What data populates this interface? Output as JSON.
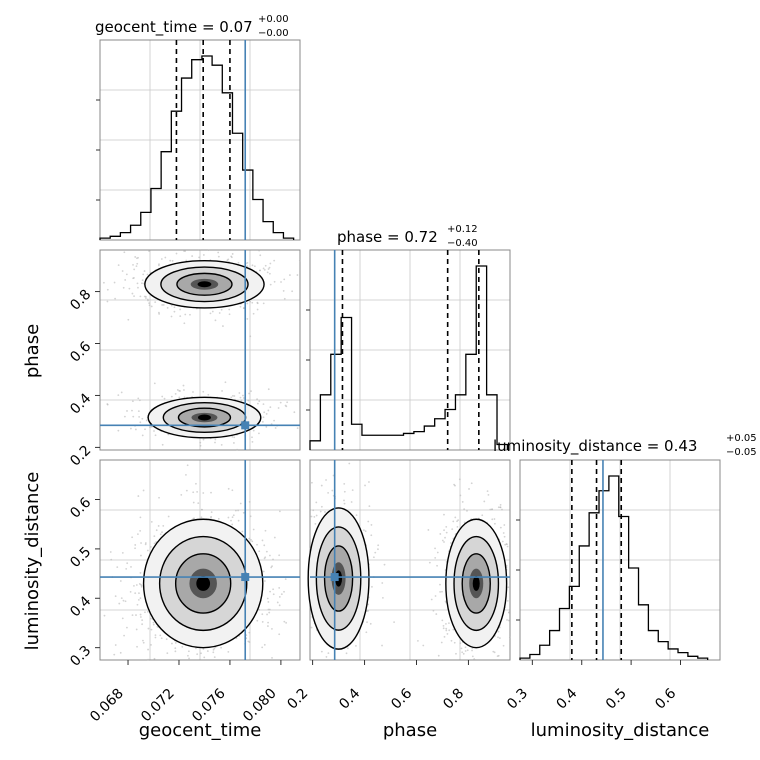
{
  "colors": {
    "truth": "#4682b4",
    "hist": "#000000",
    "grid": "#c8c8c8",
    "contour": "#000000"
  },
  "titles": {
    "geocent_time": {
      "prefix": "geocent_time = 0.07",
      "plus": "+0.00",
      "minus": "−0.00"
    },
    "phase": {
      "prefix": "phase = 0.72",
      "plus": "+0.12",
      "minus": "−0.40"
    },
    "luminosity_distance": {
      "prefix": "luminosity_distance = 0.43",
      "plus": "+0.05",
      "minus": "−0.05"
    }
  },
  "labels": {
    "x0": "geocent_time",
    "x1": "phase",
    "x2": "luminosity_distance",
    "y1": "phase",
    "y2": "luminosity_distance"
  },
  "ticks": {
    "geocent_time": [
      "0.068",
      "0.072",
      "0.076",
      "0.080"
    ],
    "phase": [
      "0.2",
      "0.4",
      "0.6",
      "0.8"
    ],
    "luminosity_distance": [
      "0.3",
      "0.4",
      "0.5",
      "0.6"
    ]
  },
  "chart_data": {
    "type": "corner",
    "parameters": [
      "geocent_time",
      "phase",
      "luminosity_distance"
    ],
    "ranges": {
      "geocent_time": [
        0.0658,
        0.0815
      ],
      "phase": [
        0.19,
        0.96
      ],
      "luminosity_distance": [
        0.275,
        0.68
      ]
    },
    "truths": {
      "geocent_time": 0.0772,
      "phase": 0.285,
      "luminosity_distance": 0.443
    },
    "quantiles": {
      "geocent_time": [
        0.0718,
        0.0739,
        0.076
      ],
      "phase": [
        0.315,
        0.72,
        0.84
      ],
      "luminosity_distance": [
        0.38,
        0.43,
        0.48
      ]
    },
    "histograms": {
      "geocent_time": {
        "edges": [
          0.0658,
          0.0666,
          0.0674,
          0.0682,
          0.069,
          0.0698,
          0.0706,
          0.0714,
          0.0722,
          0.073,
          0.0738,
          0.0746,
          0.0754,
          0.0762,
          0.077,
          0.0778,
          0.0786,
          0.0794,
          0.0802,
          0.081
        ],
        "counts": [
          1,
          2,
          4,
          8,
          15,
          28,
          48,
          70,
          88,
          98,
          100,
          95,
          80,
          58,
          38,
          22,
          10,
          4,
          1
        ]
      },
      "phase": {
        "edges": [
          0.19,
          0.23,
          0.27,
          0.31,
          0.35,
          0.39,
          0.43,
          0.47,
          0.51,
          0.55,
          0.59,
          0.63,
          0.67,
          0.71,
          0.75,
          0.79,
          0.83,
          0.87,
          0.91,
          0.95
        ],
        "counts": [
          5,
          30,
          52,
          72,
          14,
          8,
          8,
          8,
          8,
          9,
          10,
          13,
          17,
          22,
          30,
          52,
          100,
          30,
          3
        ]
      },
      "luminosity_distance": {
        "edges": [
          0.275,
          0.295,
          0.315,
          0.335,
          0.355,
          0.375,
          0.395,
          0.415,
          0.435,
          0.455,
          0.475,
          0.495,
          0.515,
          0.535,
          0.555,
          0.575,
          0.595,
          0.615,
          0.635,
          0.655
        ],
        "counts": [
          1,
          3,
          8,
          16,
          28,
          40,
          62,
          80,
          92,
          100,
          78,
          50,
          30,
          16,
          10,
          6,
          4,
          2,
          1
        ]
      }
    },
    "posterior_2d": {
      "phase_vs_geocent_time": {
        "modes": [
          {
            "x": 0.074,
            "y": 0.828
          },
          {
            "x": 0.074,
            "y": 0.315
          }
        ]
      },
      "luminosity_distance_vs_geocent_time": {
        "modes": [
          {
            "x": 0.0739,
            "y": 0.43
          }
        ]
      },
      "luminosity_distance_vs_phase": {
        "modes": [
          {
            "x": 0.3,
            "y": 0.44
          },
          {
            "x": 0.83,
            "y": 0.43
          }
        ]
      }
    }
  }
}
